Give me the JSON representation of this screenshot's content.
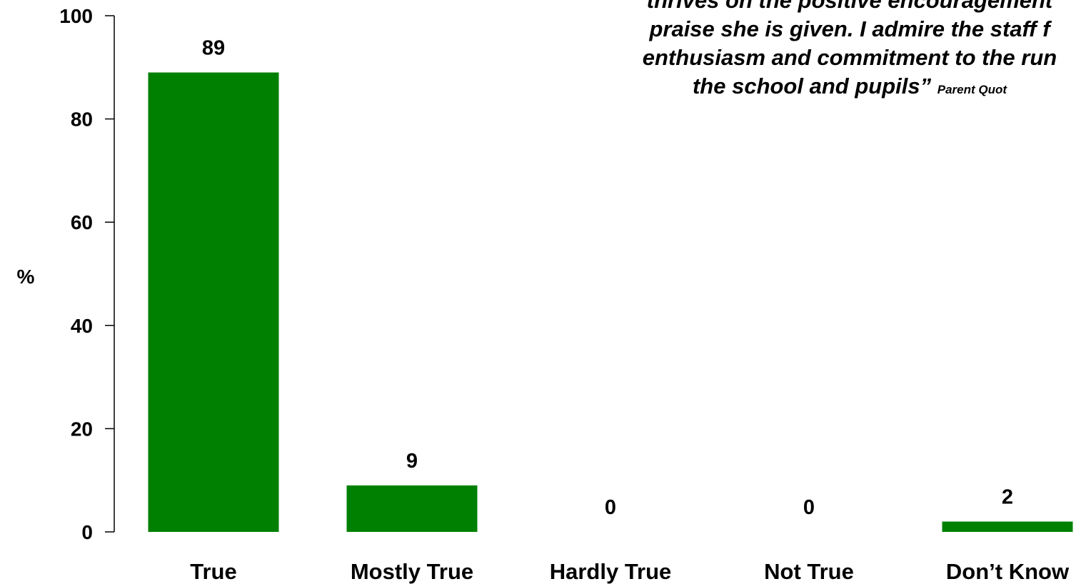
{
  "chart_data": {
    "type": "bar",
    "categories": [
      "True",
      "Mostly True",
      "Hardly True",
      "Not True",
      "Don’t Know"
    ],
    "values": [
      89,
      9,
      0,
      0,
      2
    ],
    "ylabel": "%",
    "xlabel": "",
    "ylim": [
      0,
      100
    ],
    "yticks": [
      0,
      20,
      40,
      60,
      80,
      100
    ],
    "bar_color": "#008000",
    "grid": false,
    "legend": "none"
  },
  "quote": {
    "lines": [
      "thrives on the positive encouragement",
      "praise she is given. I admire the staff f",
      "enthusiasm and commitment to the run",
      "the school and pupils”"
    ],
    "source": "Parent Quot"
  }
}
